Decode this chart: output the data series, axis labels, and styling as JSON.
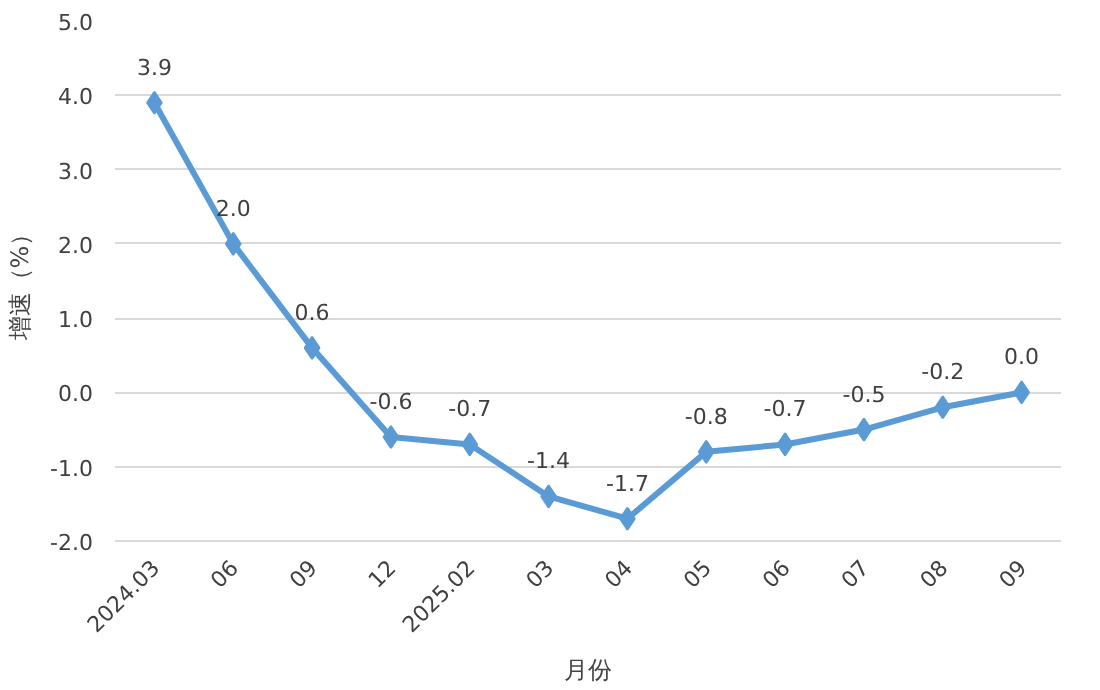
{
  "chart_data": {
    "type": "line",
    "xlabel": "月份",
    "ylabel": "增速（%）",
    "categories": [
      "2024.03",
      "06",
      "09",
      "12",
      "2025.02",
      "03",
      "04",
      "05",
      "06",
      "07",
      "08",
      "09"
    ],
    "values": [
      3.9,
      2.0,
      0.6,
      -0.6,
      -0.7,
      -1.4,
      -1.7,
      -0.8,
      -0.7,
      -0.5,
      -0.2,
      0.0
    ],
    "value_labels": [
      "3.9",
      "2.0",
      "0.6",
      "-0.6",
      "-0.7",
      "-1.4",
      "-1.7",
      "-0.8",
      "-0.7",
      "-0.5",
      "-0.2",
      "0.0"
    ],
    "color": "#5b9bd5",
    "marker": "diamond",
    "grid": "y",
    "ylim": [
      -2,
      5
    ],
    "yticks": [
      {
        "value": -2,
        "label": "-2.0"
      },
      {
        "value": -1,
        "label": "-1.0"
      },
      {
        "value": 0,
        "label": "0.0"
      },
      {
        "value": 1,
        "label": "1.0"
      },
      {
        "value": 2,
        "label": "2.0"
      },
      {
        "value": 3,
        "label": "3.0"
      },
      {
        "value": 4,
        "label": "4.0"
      },
      {
        "value": 5,
        "label": "5.0"
      }
    ]
  }
}
